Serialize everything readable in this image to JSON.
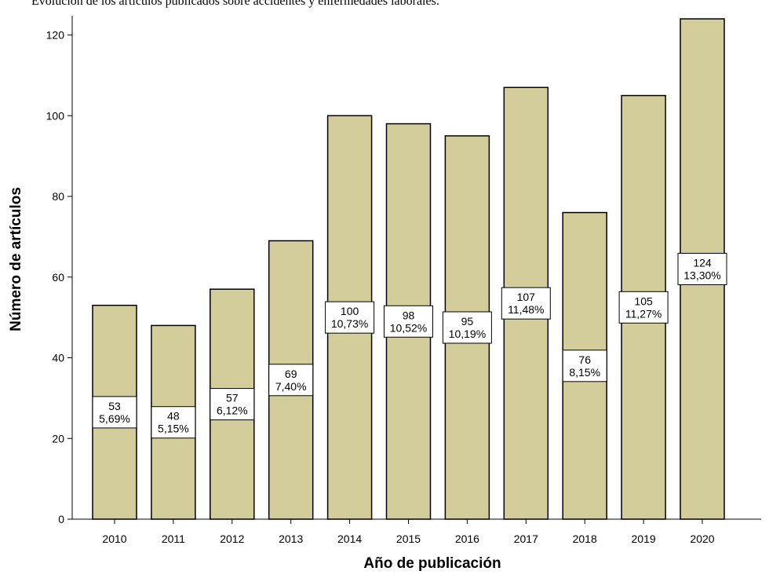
{
  "caption": "Evolución de los artículos publicados sobre accidentes y enfermedades laborales.",
  "chart_data": {
    "type": "bar",
    "title": "Evolución de los artículos publicados sobre accidentes y enfermedades laborales.",
    "xlabel": "Año de publicación",
    "ylabel": "Número de artículos",
    "categories": [
      "2010",
      "2011",
      "2012",
      "2013",
      "2014",
      "2015",
      "2016",
      "2017",
      "2018",
      "2019",
      "2020"
    ],
    "values": [
      53,
      48,
      57,
      69,
      100,
      98,
      95,
      107,
      76,
      105,
      124
    ],
    "percent_labels": [
      "5,69%",
      "5,15%",
      "6,12%",
      "7,40%",
      "10,73%",
      "10,52%",
      "10,19%",
      "11,48%",
      "8,15%",
      "11,27%",
      "13,30%"
    ],
    "ylim": [
      0,
      124
    ],
    "yticks": [
      0,
      20,
      40,
      60,
      80,
      100,
      120
    ],
    "grid": false,
    "legend": "none",
    "colors": {
      "bar_fill": "#d3cc9b",
      "bar_stroke": "#000000",
      "label_box_fill": "#ffffff",
      "label_box_stroke": "#000000"
    }
  }
}
